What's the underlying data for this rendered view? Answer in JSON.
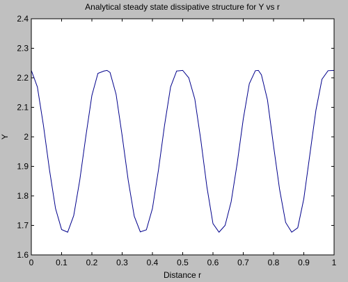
{
  "window": {
    "background": "#c0c0c0"
  },
  "chart_data": {
    "type": "line",
    "title": "Analytical steady state dissipative structure for Y vs r",
    "xlabel": "Distance r",
    "ylabel": "Y",
    "xlim": [
      0,
      1
    ],
    "ylim": [
      1.6,
      2.4
    ],
    "x_ticks": [
      "0",
      "0.1",
      "0.2",
      "0.3",
      "0.4",
      "0.5",
      "0.6",
      "0.7",
      "0.8",
      "0.9",
      "1"
    ],
    "y_ticks": [
      "1.6",
      "1.7",
      "1.8",
      "1.9",
      "2",
      "2.1",
      "2.2",
      "2.3",
      "2.4"
    ],
    "grid": false,
    "line_color": "#00008b",
    "series": [
      {
        "x": [
          0,
          0.02,
          0.04,
          0.06,
          0.08,
          0.1,
          0.12,
          0.14,
          0.16,
          0.18,
          0.2,
          0.22,
          0.24,
          0.25,
          0.26,
          0.28,
          0.3,
          0.32,
          0.34,
          0.36,
          0.38,
          0.4,
          0.42,
          0.44,
          0.46,
          0.48,
          0.5,
          0.52,
          0.54,
          0.56,
          0.58,
          0.6,
          0.62,
          0.64,
          0.66,
          0.68,
          0.7,
          0.72,
          0.74,
          0.75,
          0.76,
          0.78,
          0.8,
          0.82,
          0.84,
          0.86,
          0.88,
          0.9,
          0.92,
          0.94,
          0.96,
          0.98,
          1.0
        ],
        "values": [
          2.225,
          2.169,
          2.039,
          1.888,
          1.757,
          1.686,
          1.677,
          1.733,
          1.853,
          2.001,
          2.14,
          2.215,
          2.223,
          2.225,
          2.218,
          2.144,
          2.004,
          1.853,
          1.731,
          1.678,
          1.685,
          1.757,
          1.888,
          2.039,
          2.169,
          2.223,
          2.225,
          2.2,
          2.128,
          1.988,
          1.83,
          1.706,
          1.677,
          1.7,
          1.78,
          1.91,
          2.06,
          2.18,
          2.224,
          2.225,
          2.21,
          2.125,
          1.97,
          1.822,
          1.71,
          1.677,
          1.692,
          1.79,
          1.94,
          2.09,
          2.195,
          2.224,
          2.225
        ]
      }
    ]
  }
}
